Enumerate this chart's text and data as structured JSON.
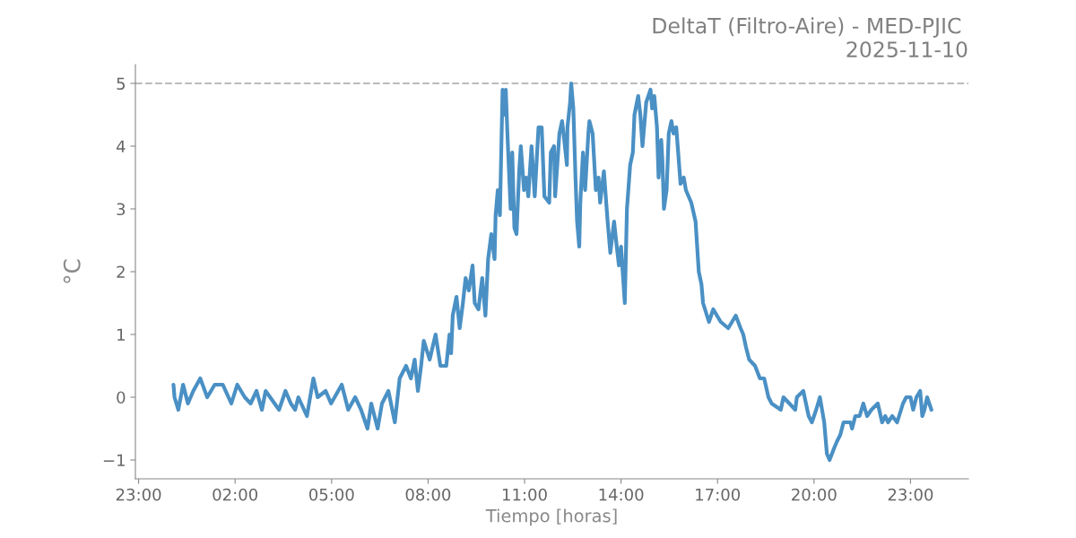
{
  "chart_data": {
    "type": "line",
    "title": "DeltaT (Filtro-Aire) - MED-PJIC \n2025-11-10",
    "xlabel": "Tiempo [horas]",
    "ylabel": "°C",
    "x": [
      "2025-11-10T00:05",
      "2025-11-10T00:07",
      "2025-11-10T00:14",
      "2025-11-10T00:23",
      "2025-11-10T00:32",
      "2025-11-10T00:42",
      "2025-11-10T00:55",
      "2025-11-10T01:08",
      "2025-11-10T01:22",
      "2025-11-10T01:37",
      "2025-11-10T01:53",
      "2025-11-10T02:04",
      "2025-11-10T02:18",
      "2025-11-10T02:29",
      "2025-11-10T02:40",
      "2025-11-10T02:50",
      "2025-11-10T02:57",
      "2025-11-10T03:22",
      "2025-11-10T03:34",
      "2025-11-10T03:44",
      "2025-11-10T03:52",
      "2025-11-10T03:58",
      "2025-11-10T04:14",
      "2025-11-10T04:26",
      "2025-11-10T04:34",
      "2025-11-10T04:49",
      "2025-11-10T04:59",
      "2025-11-10T05:19",
      "2025-11-10T05:31",
      "2025-11-10T05:44",
      "2025-11-10T05:55",
      "2025-11-10T06:07",
      "2025-11-10T06:14",
      "2025-11-10T06:26",
      "2025-11-10T06:34",
      "2025-11-10T06:46",
      "2025-11-10T06:58",
      "2025-11-10T07:07",
      "2025-11-10T07:19",
      "2025-11-10T07:28",
      "2025-11-10T07:35",
      "2025-11-10T07:41",
      "2025-11-10T07:47",
      "2025-11-10T07:52",
      "2025-11-10T08:03",
      "2025-11-10T08:14",
      "2025-11-10T08:23",
      "2025-11-10T08:34",
      "2025-11-10T08:40",
      "2025-11-10T08:43",
      "2025-11-10T08:46",
      "2025-11-10T08:53",
      "2025-11-10T08:59",
      "2025-11-10T09:05",
      "2025-11-10T09:10",
      "2025-11-10T09:16",
      "2025-11-10T09:23",
      "2025-11-10T09:27",
      "2025-11-10T09:34",
      "2025-11-10T09:41",
      "2025-11-10T09:47",
      "2025-11-10T09:52",
      "2025-11-10T09:58",
      "2025-11-10T10:04",
      "2025-11-10T10:06",
      "2025-11-10T10:10",
      "2025-11-10T10:14",
      "2025-11-10T10:19",
      "2025-11-10T10:23",
      "2025-11-10T10:25",
      "2025-11-10T10:28",
      "2025-11-10T10:34",
      "2025-11-10T10:37",
      "2025-11-10T10:41",
      "2025-11-10T10:45",
      "2025-11-10T10:50",
      "2025-11-10T10:53",
      "2025-11-10T10:59",
      "2025-11-10T11:03",
      "2025-11-10T11:07",
      "2025-11-10T11:13",
      "2025-11-10T11:19",
      "2025-11-10T11:26",
      "2025-11-10T11:32",
      "2025-11-10T11:37",
      "2025-11-10T11:46",
      "2025-11-10T11:49",
      "2025-11-10T11:55",
      "2025-11-10T11:57",
      "2025-11-10T12:05",
      "2025-11-10T12:10",
      "2025-11-10T12:14",
      "2025-11-10T12:19",
      "2025-11-10T12:20",
      "2025-11-10T12:25",
      "2025-11-10T12:27",
      "2025-11-10T12:31",
      "2025-11-10T12:35",
      "2025-11-10T12:38",
      "2025-11-10T12:42",
      "2025-11-10T12:44",
      "2025-11-10T12:49",
      "2025-11-10T12:53",
      "2025-11-10T12:59",
      "2025-11-10T13:01",
      "2025-11-10T13:07",
      "2025-11-10T13:13",
      "2025-11-10T13:18",
      "2025-11-10T13:21",
      "2025-11-10T13:28",
      "2025-11-10T13:35",
      "2025-11-10T13:40",
      "2025-11-10T13:47",
      "2025-11-10T13:52",
      "2025-11-10T13:56",
      "2025-11-10T14:00",
      "2025-11-10T14:07",
      "2025-11-10T14:11",
      "2025-11-10T14:17",
      "2025-11-10T14:22",
      "2025-11-10T14:25",
      "2025-11-10T14:32",
      "2025-11-10T14:36",
      "2025-11-10T14:40",
      "2025-11-10T14:47",
      "2025-11-10T14:55",
      "2025-11-10T14:58",
      "2025-11-10T15:02",
      "2025-11-10T15:07",
      "2025-11-10T15:10",
      "2025-11-10T15:15",
      "2025-11-10T15:17",
      "2025-11-10T15:20",
      "2025-11-10T15:25",
      "2025-11-10T15:29",
      "2025-11-10T15:34",
      "2025-11-10T15:38",
      "2025-11-10T15:43",
      "2025-11-10T15:51",
      "2025-11-10T15:57",
      "2025-11-10T16:01",
      "2025-11-10T16:11",
      "2025-11-10T16:19",
      "2025-11-10T16:25",
      "2025-11-10T16:30",
      "2025-11-10T16:33",
      "2025-11-10T16:44",
      "2025-11-10T16:52",
      "2025-11-10T17:06",
      "2025-11-10T17:20",
      "2025-11-10T17:34",
      "2025-11-10T17:43",
      "2025-11-10T17:48",
      "2025-11-10T17:53",
      "2025-11-10T17:59",
      "2025-11-10T18:10",
      "2025-11-10T18:19",
      "2025-11-10T18:27",
      "2025-11-10T18:35",
      "2025-11-10T18:41",
      "2025-11-10T18:58",
      "2025-11-10T19:03",
      "2025-11-10T19:25",
      "2025-11-10T19:28",
      "2025-11-10T19:40",
      "2025-11-10T19:50",
      "2025-11-10T19:56",
      "2025-11-10T20:04",
      "2025-11-10T20:11",
      "2025-11-10T20:19",
      "2025-11-10T20:24",
      "2025-11-10T20:29",
      "2025-11-10T20:38",
      "2025-11-10T20:43",
      "2025-11-10T20:49",
      "2025-11-10T20:55",
      "2025-11-10T21:08",
      "2025-11-10T21:11",
      "2025-11-10T21:17",
      "2025-11-10T21:25",
      "2025-11-10T21:32",
      "2025-11-10T21:39",
      "2025-11-10T21:47",
      "2025-11-10T21:59",
      "2025-11-10T22:07",
      "2025-11-10T22:13",
      "2025-11-10T22:18",
      "2025-11-10T22:26",
      "2025-11-10T22:35",
      "2025-11-10T22:46",
      "2025-11-10T22:52",
      "2025-11-10T23:00",
      "2025-11-10T23:05",
      "2025-11-10T23:11",
      "2025-11-10T23:18",
      "2025-11-10T23:22",
      "2025-11-10T23:26",
      "2025-11-10T23:31",
      "2025-11-10T23:39"
    ],
    "series": [
      {
        "color": "#4a90c4",
        "values": [
          0.2,
          0.0,
          -0.2,
          0.2,
          -0.1,
          0.1,
          0.3,
          0.0,
          0.2,
          0.2,
          -0.1,
          0.2,
          0.0,
          -0.1,
          0.1,
          -0.2,
          0.1,
          -0.2,
          0.1,
          -0.1,
          -0.2,
          0.0,
          -0.3,
          0.3,
          0.0,
          0.1,
          -0.1,
          0.2,
          -0.2,
          0.0,
          -0.2,
          -0.5,
          -0.1,
          -0.5,
          -0.1,
          0.1,
          -0.4,
          0.3,
          0.5,
          0.3,
          0.6,
          0.1,
          0.5,
          0.9,
          0.6,
          1.0,
          0.5,
          0.5,
          1.0,
          0.7,
          1.3,
          1.6,
          1.1,
          1.5,
          1.9,
          1.7,
          2.1,
          1.5,
          1.4,
          1.9,
          1.3,
          2.2,
          2.6,
          2.2,
          2.9,
          3.3,
          2.9,
          4.9,
          4.5,
          4.9,
          4.2,
          3.0,
          3.9,
          2.7,
          2.6,
          3.6,
          4.0,
          3.3,
          3.5,
          3.2,
          4.0,
          3.2,
          4.3,
          4.3,
          3.2,
          3.1,
          3.9,
          4.0,
          3.2,
          4.2,
          4.4,
          4.1,
          3.7,
          4.3,
          4.7,
          5.0,
          4.6,
          3.5,
          2.8,
          2.4,
          3.1,
          3.9,
          3.3,
          4.2,
          4.4,
          4.2,
          3.3,
          3.5,
          3.1,
          3.6,
          2.8,
          2.3,
          2.8,
          2.4,
          2.1,
          2.4,
          1.5,
          3.0,
          3.7,
          3.9,
          4.5,
          4.8,
          4.5,
          4.0,
          4.7,
          4.9,
          4.6,
          4.8,
          4.3,
          3.5,
          4.1,
          3.8,
          3.0,
          3.3,
          4.2,
          4.4,
          4.2,
          4.3,
          3.4,
          3.5,
          3.3,
          3.1,
          2.8,
          2.0,
          1.8,
          1.5,
          1.2,
          1.4,
          1.2,
          1.1,
          1.3,
          1.1,
          1.0,
          0.8,
          0.6,
          0.5,
          0.3,
          0.3,
          0.0,
          -0.1,
          -0.2,
          0.0,
          -0.2,
          0.0,
          0.1,
          -0.3,
          -0.4,
          -0.2,
          0.0,
          -0.4,
          -0.9,
          -1.0,
          -0.8,
          -0.7,
          -0.6,
          -0.4,
          -0.4,
          -0.5,
          -0.3,
          -0.3,
          -0.1,
          -0.3,
          -0.2,
          -0.1,
          -0.4,
          -0.3,
          -0.4,
          -0.3,
          -0.4,
          -0.1,
          0.0,
          0.0,
          -0.2,
          0.0,
          0.1,
          -0.3,
          -0.2,
          0.0,
          -0.2
        ]
      }
    ],
    "xlim": [
      "2025-11-09T22:54",
      "2025-11-11T00:48"
    ],
    "ylim": [
      -1.3,
      5.3
    ],
    "xticks": [
      {
        "value": "2025-11-09T23:00",
        "label": "23:00"
      },
      {
        "value": "2025-11-10T02:00",
        "label": "02:00"
      },
      {
        "value": "2025-11-10T05:00",
        "label": "05:00"
      },
      {
        "value": "2025-11-10T08:00",
        "label": "08:00"
      },
      {
        "value": "2025-11-10T11:00",
        "label": "11:00"
      },
      {
        "value": "2025-11-10T14:00",
        "label": "14:00"
      },
      {
        "value": "2025-11-10T17:00",
        "label": "17:00"
      },
      {
        "value": "2025-11-10T20:00",
        "label": "20:00"
      },
      {
        "value": "2025-11-10T23:00",
        "label": "23:00"
      }
    ],
    "yticks": [
      {
        "value": -1,
        "label": "−1"
      },
      0,
      1,
      2,
      3,
      4,
      5
    ],
    "ref_lines": [
      {
        "axis": "y",
        "value": 5,
        "color": "#bbbbbb",
        "line_style": "dashed"
      }
    ],
    "grid": false,
    "line_style": "solid"
  }
}
